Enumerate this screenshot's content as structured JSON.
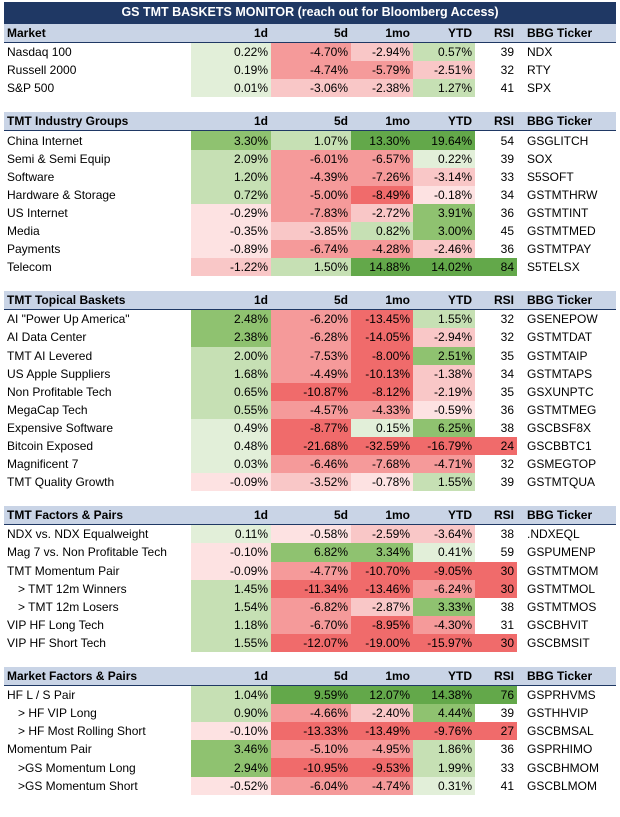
{
  "title": "GS TMT BASKETS MONITOR (reach out for Bloomberg Access)",
  "columns": [
    "1d",
    "5d",
    "1mo",
    "YTD",
    "RSI",
    "BBG Ticker"
  ],
  "colors": {
    "header_bg": "#c9d4e6",
    "title_bg": "#1f3864",
    "strong_green": "#63a84a",
    "mid_green": "#8fc270",
    "light_green": "#c6e0b4",
    "pale_green": "#e2efd9",
    "strong_red": "#f06b6b",
    "mid_red": "#f59a9a",
    "light_red": "#f9c7c7",
    "pale_red": "#fde2e2"
  },
  "sections": [
    {
      "header": "Market",
      "rows": [
        {
          "name": "Nasdaq 100",
          "d1": "0.22%",
          "d5": "-4.70%",
          "m1": "-2.94%",
          "ytd": "0.57%",
          "rsi": "39",
          "ticker": "NDX"
        },
        {
          "name": "Russell 2000",
          "d1": "0.19%",
          "d5": "-4.74%",
          "m1": "-5.79%",
          "ytd": "-2.51%",
          "rsi": "32",
          "ticker": "RTY"
        },
        {
          "name": "S&P 500",
          "d1": "0.01%",
          "d5": "-3.06%",
          "m1": "-2.38%",
          "ytd": "1.27%",
          "rsi": "41",
          "ticker": "SPX"
        }
      ]
    },
    {
      "header": "TMT Industry Groups",
      "rows": [
        {
          "name": "China Internet",
          "d1": "3.30%",
          "d5": "1.07%",
          "m1": "13.30%",
          "ytd": "19.64%",
          "rsi": "54",
          "ticker": "GSGLITCH"
        },
        {
          "name": "Semi & Semi Equip",
          "d1": "2.09%",
          "d5": "-6.01%",
          "m1": "-6.57%",
          "ytd": "0.22%",
          "rsi": "39",
          "ticker": "SOX"
        },
        {
          "name": "Software",
          "d1": "1.20%",
          "d5": "-4.39%",
          "m1": "-7.26%",
          "ytd": "-3.14%",
          "rsi": "33",
          "ticker": "S5SOFT"
        },
        {
          "name": "Hardware & Storage",
          "d1": "0.72%",
          "d5": "-5.00%",
          "m1": "-8.49%",
          "ytd": "-0.18%",
          "rsi": "34",
          "ticker": "GSTMTHRW"
        },
        {
          "name": "US Internet",
          "d1": "-0.29%",
          "d5": "-7.83%",
          "m1": "-2.72%",
          "ytd": "3.91%",
          "rsi": "36",
          "ticker": "GSTMTINT"
        },
        {
          "name": "Media",
          "d1": "-0.35%",
          "d5": "-3.85%",
          "m1": "0.82%",
          "ytd": "3.00%",
          "rsi": "45",
          "ticker": "GSTMTMED"
        },
        {
          "name": "Payments",
          "d1": "-0.89%",
          "d5": "-6.74%",
          "m1": "-4.28%",
          "ytd": "-2.46%",
          "rsi": "36",
          "ticker": "GSTMTPAY"
        },
        {
          "name": "Telecom",
          "d1": "-1.22%",
          "d5": "1.50%",
          "m1": "14.88%",
          "ytd": "14.02%",
          "rsi": "84",
          "ticker": "S5TELSX"
        }
      ]
    },
    {
      "header": "TMT Topical Baskets",
      "rows": [
        {
          "name": "AI \"Power Up America\"",
          "d1": "2.48%",
          "d5": "-6.20%",
          "m1": "-13.45%",
          "ytd": "1.55%",
          "rsi": "32",
          "ticker": "GSENEPOW"
        },
        {
          "name": "AI Data Center",
          "d1": "2.38%",
          "d5": "-6.28%",
          "m1": "-14.05%",
          "ytd": "-2.94%",
          "rsi": "32",
          "ticker": "GSTMTDAT"
        },
        {
          "name": "TMT AI Levered",
          "d1": "2.00%",
          "d5": "-7.53%",
          "m1": "-8.00%",
          "ytd": "2.51%",
          "rsi": "35",
          "ticker": "GSTMTAIP"
        },
        {
          "name": "US Apple Suppliers",
          "d1": "1.68%",
          "d5": "-4.49%",
          "m1": "-10.13%",
          "ytd": "-1.38%",
          "rsi": "34",
          "ticker": "GSTMTAPS"
        },
        {
          "name": "Non Profitable Tech",
          "d1": "0.65%",
          "d5": "-10.87%",
          "m1": "-8.12%",
          "ytd": "-2.19%",
          "rsi": "35",
          "ticker": "GSXUNPTC"
        },
        {
          "name": "MegaCap Tech",
          "d1": "0.55%",
          "d5": "-4.57%",
          "m1": "-4.33%",
          "ytd": "-0.59%",
          "rsi": "36",
          "ticker": "GSTMTMEG"
        },
        {
          "name": "Expensive Software",
          "d1": "0.49%",
          "d5": "-8.77%",
          "m1": "0.15%",
          "ytd": "6.25%",
          "rsi": "38",
          "ticker": "GSCBSF8X"
        },
        {
          "name": "Bitcoin Exposed",
          "d1": "0.48%",
          "d5": "-21.68%",
          "m1": "-32.59%",
          "ytd": "-16.79%",
          "rsi": "24",
          "ticker": "GSCBBTC1"
        },
        {
          "name": "Magnificent 7",
          "d1": "0.03%",
          "d5": "-6.46%",
          "m1": "-7.68%",
          "ytd": "-4.71%",
          "rsi": "32",
          "ticker": "GSMEGTOP"
        },
        {
          "name": "TMT Quality Growth",
          "d1": "-0.09%",
          "d5": "-3.52%",
          "m1": "-0.78%",
          "ytd": "1.55%",
          "rsi": "39",
          "ticker": "GSTMTQUA"
        }
      ]
    },
    {
      "header": "TMT Factors & Pairs",
      "rows": [
        {
          "name": "NDX vs. NDX Equalweight",
          "d1": "0.11%",
          "d5": "-0.58%",
          "m1": "-2.59%",
          "ytd": "-3.64%",
          "rsi": "38",
          "ticker": ".NDXEQL"
        },
        {
          "name": "Mag 7 vs. Non Profitable Tech",
          "d1": "-0.10%",
          "d5": "6.82%",
          "m1": "3.34%",
          "ytd": "0.41%",
          "rsi": "59",
          "ticker": "GSPUMENP"
        },
        {
          "name": "TMT Momentum Pair",
          "d1": "-0.09%",
          "d5": "-4.77%",
          "m1": "-10.70%",
          "ytd": "-9.05%",
          "rsi": "30",
          "ticker": "GSTMTMOM"
        },
        {
          "name": "> TMT 12m Winners",
          "d1": "1.45%",
          "d5": "-11.34%",
          "m1": "-13.46%",
          "ytd": "-6.24%",
          "rsi": "30",
          "ticker": "GSTMTMOL",
          "sub": true
        },
        {
          "name": "> TMT 12m Losers",
          "d1": "1.54%",
          "d5": "-6.82%",
          "m1": "-2.87%",
          "ytd": "3.33%",
          "rsi": "38",
          "ticker": "GSTMTMOS",
          "sub": true
        },
        {
          "name": "VIP HF Long Tech",
          "d1": "1.18%",
          "d5": "-6.70%",
          "m1": "-8.95%",
          "ytd": "-4.30%",
          "rsi": "31",
          "ticker": "GSCBHVIT"
        },
        {
          "name": "VIP HF Short Tech",
          "d1": "1.55%",
          "d5": "-12.07%",
          "m1": "-19.00%",
          "ytd": "-15.97%",
          "rsi": "30",
          "ticker": "GSCBMSIT"
        }
      ]
    },
    {
      "header": "Market Factors & Pairs",
      "rows": [
        {
          "name": "HF L / S Pair",
          "d1": "1.04%",
          "d5": "9.59%",
          "m1": "12.07%",
          "ytd": "14.38%",
          "rsi": "76",
          "ticker": "GSPRHVMS"
        },
        {
          "name": "> HF VIP Long",
          "d1": "0.90%",
          "d5": "-4.66%",
          "m1": "-2.40%",
          "ytd": "4.44%",
          "rsi": "39",
          "ticker": "GSTHHVIP",
          "sub": true
        },
        {
          "name": "> HF Most Rolling Short",
          "d1": "-0.10%",
          "d5": "-13.33%",
          "m1": "-13.49%",
          "ytd": "-9.76%",
          "rsi": "27",
          "ticker": "GSCBMSAL",
          "sub": true
        },
        {
          "name": "Momentum Pair",
          "d1": "3.46%",
          "d5": "-5.10%",
          "m1": "-4.95%",
          "ytd": "1.86%",
          "rsi": "36",
          "ticker": "GSPRHIMO"
        },
        {
          "name": ">GS Momentum Long",
          "d1": "2.94%",
          "d5": "-10.95%",
          "m1": "-9.53%",
          "ytd": "1.99%",
          "rsi": "33",
          "ticker": "GSCBHMOM",
          "sub": true
        },
        {
          "name": ">GS Momentum Short",
          "d1": "-0.52%",
          "d5": "-6.04%",
          "m1": "-4.74%",
          "ytd": "0.31%",
          "rsi": "41",
          "ticker": "GSCBLMOM",
          "sub": true
        }
      ]
    }
  ]
}
